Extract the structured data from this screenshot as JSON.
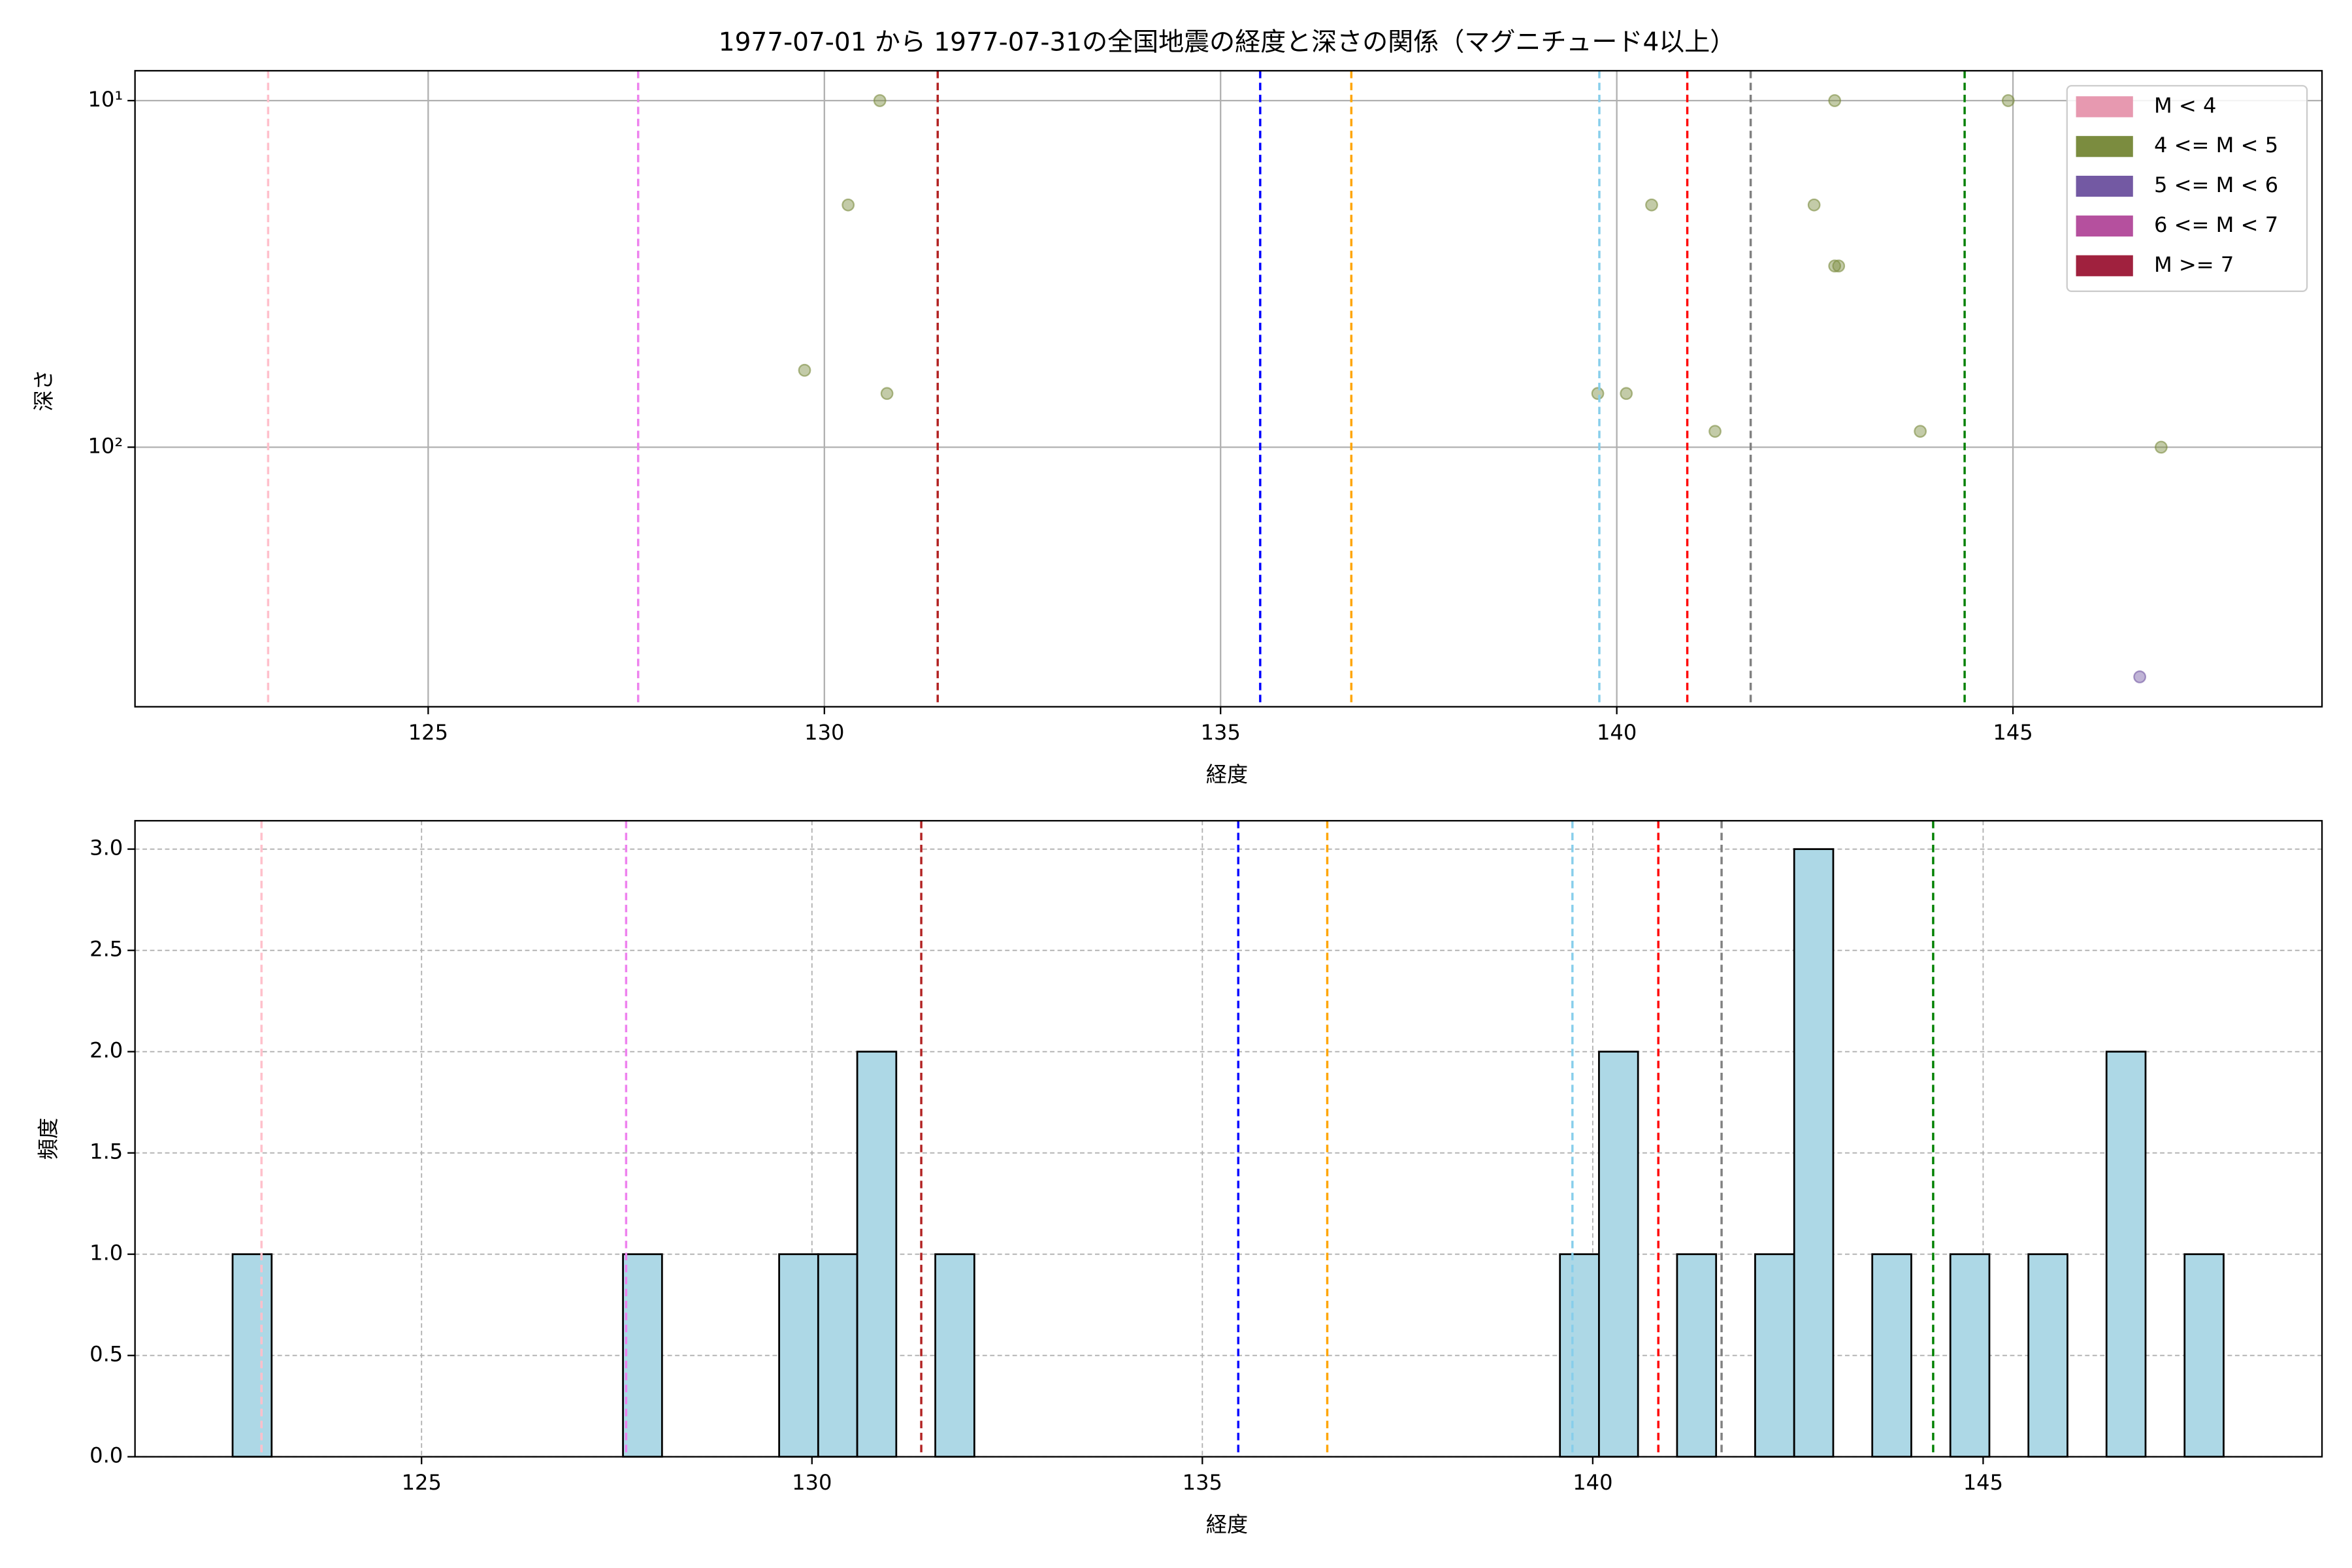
{
  "chart_data": [
    {
      "type": "scatter",
      "title": "1977-07-01 から 1977-07-31の全国地震の経度と深さの関係（マグニチュード4以上）",
      "x_label": "経度",
      "y_label": "深さ",
      "log_y": true,
      "y_inverted": true,
      "grid": true,
      "legend": "upper right",
      "xlim": [
        121.3,
        148.9
      ],
      "xticks": [
        125,
        130,
        135,
        140,
        145
      ],
      "ylim": [
        8.2,
        561
      ],
      "yticks": [
        {
          "value": 10,
          "label": "10¹"
        },
        {
          "value": 100,
          "label": "10²"
        }
      ],
      "series": [
        {
          "name": "M < 4",
          "color": "#e799b0",
          "x": [],
          "values": []
        },
        {
          "name": "4 <= M < 5",
          "color": "#7b8c3f",
          "x": [
            130.7,
            130.3,
            129.75,
            130.79,
            140.44,
            139.76,
            140.12,
            141.24,
            142.75,
            142.49,
            142.75,
            142.8,
            143.83,
            144.94,
            146.87
          ],
          "values": [
            10,
            20,
            60,
            70,
            20,
            70,
            70,
            90,
            10,
            20,
            30,
            30,
            90,
            10,
            100
          ]
        },
        {
          "name": "5 <= M < 6",
          "color": "#7359a3",
          "x": [
            146.6
          ],
          "values": [
            460
          ]
        },
        {
          "name": "6 <= M < 7",
          "color": "#b5509e",
          "x": [],
          "values": []
        },
        {
          "name": "M >= 7",
          "color": "#a0213e",
          "x": [],
          "values": []
        }
      ],
      "vlines": [
        {
          "x": 122.98,
          "color": "pink"
        },
        {
          "x": 127.65,
          "color": "violet"
        },
        {
          "x": 131.43,
          "color": "#b22222"
        },
        {
          "x": 135.5,
          "color": "blue"
        },
        {
          "x": 136.65,
          "color": "orange"
        },
        {
          "x": 139.78,
          "color": "skyblue"
        },
        {
          "x": 140.89,
          "color": "red"
        },
        {
          "x": 141.69,
          "color": "gray"
        },
        {
          "x": 144.39,
          "color": "green"
        }
      ]
    },
    {
      "type": "histogram",
      "x_label": "経度",
      "y_label": "頻度",
      "grid": true,
      "color": "#add8e6",
      "xlim": [
        121.33,
        149.34
      ],
      "xticks": [
        125,
        130,
        135,
        140,
        145
      ],
      "ylim": [
        0,
        3.14
      ],
      "yticks": [
        {
          "value": 0,
          "label": "0.0"
        },
        {
          "value": 0.5,
          "label": "0.5"
        },
        {
          "value": 1,
          "label": "1.0"
        },
        {
          "value": 1.5,
          "label": "1.5"
        },
        {
          "value": 2,
          "label": "2.0"
        },
        {
          "value": 2.5,
          "label": "2.5"
        },
        {
          "value": 3,
          "label": "3.0"
        }
      ],
      "bins": [
        122.58,
        123.08,
        123.58,
        124.08,
        124.58,
        125.08,
        125.58,
        126.08,
        126.58,
        127.08,
        127.58,
        128.08,
        128.58,
        129.08,
        129.58,
        130.08,
        130.58,
        131.08,
        131.58,
        132.08,
        132.58,
        133.08,
        133.58,
        134.08,
        134.58,
        135.08,
        135.58,
        136.08,
        136.58,
        137.08,
        137.58,
        138.08,
        138.58,
        139.08,
        139.58,
        140.08,
        140.58,
        141.08,
        141.58,
        142.08,
        142.58,
        143.08,
        143.58,
        144.08,
        144.58,
        145.08,
        145.58,
        146.08,
        146.58,
        147.08,
        147.58,
        148.08
      ],
      "values": [
        1,
        0,
        0,
        0,
        0,
        0,
        0,
        0,
        0,
        0,
        1,
        0,
        0,
        0,
        1,
        1,
        2,
        0,
        1,
        0,
        0,
        0,
        0,
        0,
        0,
        0,
        0,
        0,
        0,
        0,
        0,
        0,
        0,
        0,
        1,
        2,
        0,
        1,
        0,
        1,
        3,
        0,
        1,
        0,
        1,
        0,
        1,
        0,
        2,
        0,
        1
      ],
      "vlines": [
        {
          "x": 122.95,
          "color": "pink"
        },
        {
          "x": 127.62,
          "color": "violet"
        },
        {
          "x": 131.4,
          "color": "#b22222"
        },
        {
          "x": 135.46,
          "color": "blue"
        },
        {
          "x": 136.6,
          "color": "orange"
        },
        {
          "x": 139.74,
          "color": "skyblue"
        },
        {
          "x": 140.84,
          "color": "red"
        },
        {
          "x": 141.65,
          "color": "gray"
        },
        {
          "x": 144.36,
          "color": "green"
        }
      ]
    }
  ]
}
